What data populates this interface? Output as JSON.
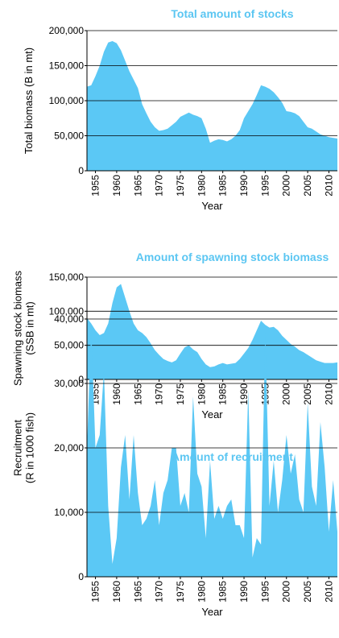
{
  "chart_data": [
    {
      "type": "area",
      "title": "Total amount of stocks",
      "xlabel": "Year",
      "ylabel": [
        "Total biomass (B in mt)"
      ],
      "color": "#5bc8f5",
      "x": [
        1953,
        1954,
        1955,
        1956,
        1957,
        1958,
        1959,
        1960,
        1961,
        1962,
        1963,
        1964,
        1965,
        1966,
        1967,
        1968,
        1969,
        1970,
        1971,
        1972,
        1973,
        1974,
        1975,
        1976,
        1977,
        1978,
        1979,
        1980,
        1981,
        1982,
        1983,
        1984,
        1985,
        1986,
        1987,
        1988,
        1989,
        1990,
        1991,
        1992,
        1993,
        1994,
        1995,
        1996,
        1997,
        1998,
        1999,
        2000,
        2001,
        2002,
        2003,
        2004,
        2005,
        2006,
        2007,
        2008,
        2009,
        2010,
        2011,
        2012
      ],
      "values": [
        120000,
        122000,
        135000,
        150000,
        170000,
        183000,
        185000,
        182000,
        172000,
        157000,
        142000,
        130000,
        118000,
        95000,
        82000,
        70000,
        62000,
        57000,
        58000,
        60000,
        65000,
        70000,
        77000,
        80000,
        83000,
        80000,
        78000,
        75000,
        60000,
        40000,
        43000,
        45000,
        44000,
        42000,
        45000,
        50000,
        58000,
        75000,
        85000,
        95000,
        108000,
        122000,
        120000,
        117000,
        112000,
        105000,
        97000,
        85000,
        84000,
        82000,
        78000,
        70000,
        62000,
        60000,
        56000,
        52000,
        50000,
        48000,
        47000,
        46000
      ],
      "xlim": [
        1953,
        2012
      ],
      "xticks": [
        1955,
        1960,
        1965,
        1970,
        1975,
        1980,
        1985,
        1990,
        1995,
        2000,
        2005,
        2010
      ],
      "ylim": [
        0,
        200000
      ],
      "yticks": [
        0,
        {
          "value": 50000,
          "label": "50,000"
        },
        {
          "value": 100000,
          "label": "100,000"
        },
        {
          "value": 150000,
          "label": "150,000"
        },
        {
          "value": 200000,
          "label": "200,000"
        }
      ],
      "grid": true
    },
    {
      "type": "area",
      "title": "Amount of spawning stock biomass",
      "xlabel": "Year",
      "ylabel": [
        "Spawning stock biomass",
        "(SSB in mt)"
      ],
      "color": "#5bc8f5",
      "x": [
        1953,
        1954,
        1955,
        1956,
        1957,
        1958,
        1959,
        1960,
        1961,
        1962,
        1963,
        1964,
        1965,
        1966,
        1967,
        1968,
        1969,
        1970,
        1971,
        1972,
        1973,
        1974,
        1975,
        1976,
        1977,
        1978,
        1979,
        1980,
        1981,
        1982,
        1983,
        1984,
        1985,
        1986,
        1987,
        1988,
        1989,
        1990,
        1991,
        1992,
        1993,
        1994,
        1995,
        1996,
        1997,
        1998,
        1999,
        2000,
        2001,
        2002,
        2003,
        2004,
        2005,
        2006,
        2007,
        2008,
        2009,
        2010,
        2011,
        2012
      ],
      "values": [
        90000,
        82000,
        72000,
        65000,
        68000,
        82000,
        112000,
        135000,
        140000,
        120000,
        100000,
        82000,
        72000,
        68000,
        62000,
        53000,
        43000,
        36000,
        30000,
        27000,
        25000,
        28000,
        38000,
        47000,
        50000,
        44000,
        40000,
        30000,
        22000,
        18000,
        19000,
        22000,
        24000,
        22000,
        23000,
        24000,
        30000,
        38000,
        46000,
        58000,
        72000,
        86000,
        80000,
        76000,
        77000,
        72000,
        64000,
        58000,
        52000,
        48000,
        43000,
        40000,
        36000,
        32000,
        28000,
        26000,
        24000,
        24000,
        24000,
        25000
      ],
      "xlim": [
        1953,
        2012
      ],
      "xticks": [
        1955,
        1960,
        1965,
        1970,
        1975,
        1980,
        1985,
        1990,
        1995,
        2000,
        2005,
        2010
      ],
      "ylim": [
        0,
        150000
      ],
      "yticks": [
        0,
        {
          "value": 50000,
          "label": "50,000"
        },
        {
          "value": 100000,
          "label": "100,000"
        },
        {
          "value": 150000,
          "label": "150,000"
        }
      ],
      "grid": true
    },
    {
      "type": "area",
      "title": "Amount of recruitment",
      "xlabel": "Year",
      "ylabel": [
        "Recruitment",
        "(R in 1000 fish)"
      ],
      "color": "#5bc8f5",
      "x": [
        1953,
        1954,
        1955,
        1956,
        1957,
        1958,
        1959,
        1960,
        1961,
        1962,
        1963,
        1964,
        1965,
        1966,
        1967,
        1968,
        1969,
        1970,
        1971,
        1972,
        1973,
        1974,
        1975,
        1976,
        1977,
        1978,
        1979,
        1980,
        1981,
        1982,
        1983,
        1984,
        1985,
        1986,
        1987,
        1988,
        1989,
        1990,
        1991,
        1992,
        1993,
        1994,
        1995,
        1996,
        1997,
        1998,
        1999,
        2000,
        2001,
        2002,
        2003,
        2004,
        2005,
        2006,
        2007,
        2008,
        2009,
        2010,
        2011,
        2012
      ],
      "values": [
        20000,
        39000,
        20000,
        22000,
        32000,
        11000,
        2000,
        6000,
        17000,
        22000,
        12000,
        22000,
        13000,
        8000,
        9000,
        11000,
        15000,
        8000,
        13000,
        15000,
        20000,
        20000,
        11000,
        13000,
        10000,
        28000,
        16000,
        14000,
        6000,
        18000,
        9000,
        11000,
        9000,
        11000,
        12000,
        8000,
        8000,
        6000,
        29000,
        3000,
        6000,
        5000,
        38000,
        11000,
        18000,
        10000,
        15000,
        22000,
        16000,
        19000,
        12000,
        10000,
        27000,
        14000,
        11000,
        24000,
        17000,
        7000,
        15000,
        7000
      ],
      "xlim": [
        1953,
        2012
      ],
      "xticks": [
        1955,
        1960,
        1965,
        1970,
        1975,
        1980,
        1985,
        1990,
        1995,
        2000,
        2005,
        2010
      ],
      "ylim": [
        0,
        40000
      ],
      "yticks": [
        0,
        {
          "value": 10000,
          "label": "10,000"
        },
        {
          "value": 20000,
          "label": "20,000"
        },
        {
          "value": 30000,
          "label": "30,000"
        },
        {
          "value": 40000,
          "label": "40,000"
        }
      ],
      "grid": true
    }
  ]
}
